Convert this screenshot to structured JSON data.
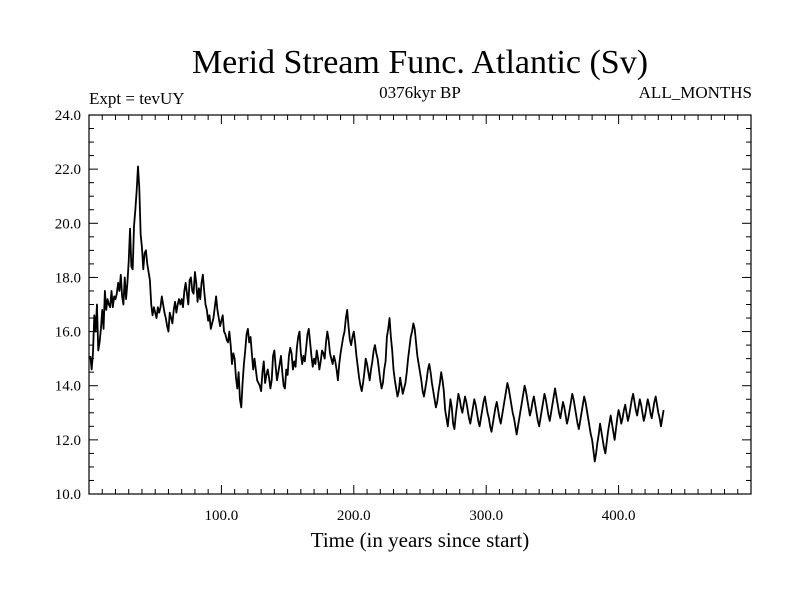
{
  "chart_data": {
    "type": "line",
    "title": "Merid Stream Func. Atlantic (Sv)",
    "left_label": "Expt = tevUY",
    "center_label": "0376kyr BP",
    "right_label": "ALL_MONTHS",
    "xlabel": "Time (in years since start)",
    "ylabel": "",
    "xlim": [
      0,
      500
    ],
    "ylim": [
      10,
      24
    ],
    "x_ticks": [
      100,
      200,
      300,
      400
    ],
    "x_tick_labels": [
      "100.0",
      "200.0",
      "300.0",
      "400.0"
    ],
    "y_ticks": [
      10,
      12,
      14,
      16,
      18,
      20,
      22,
      24
    ],
    "y_tick_labels": [
      "10.0",
      "12.0",
      "14.0",
      "16.0",
      "18.0",
      "20.0",
      "22.0",
      "24.0"
    ],
    "series": [
      {
        "color": "#000000",
        "x_start": 1,
        "x_step": 1,
        "values": [
          15.1,
          14.6,
          15.2,
          16.6,
          16.0,
          17.0,
          15.3,
          15.6,
          16.1,
          16.8,
          16.1,
          17.5,
          16.8,
          17.2,
          17.0,
          16.9,
          17.5,
          16.9,
          17.3,
          17.2,
          17.4,
          17.8,
          17.5,
          18.1,
          17.3,
          17.0,
          18.0,
          17.2,
          17.8,
          18.6,
          19.8,
          18.4,
          18.3,
          19.9,
          20.5,
          21.2,
          22.1,
          21.3,
          19.6,
          19.1,
          18.3,
          18.9,
          19.0,
          18.5,
          18.2,
          17.9,
          17.0,
          16.6,
          16.9,
          16.7,
          16.5,
          16.9,
          16.7,
          16.9,
          17.3,
          17.0,
          16.7,
          16.5,
          16.2,
          16.0,
          16.7,
          16.5,
          16.3,
          16.8,
          17.1,
          16.7,
          17.0,
          17.2,
          17.0,
          17.2,
          16.9,
          17.5,
          17.8,
          17.4,
          17.0,
          17.9,
          18.0,
          17.5,
          17.4,
          18.2,
          17.8,
          17.1,
          17.6,
          17.2,
          17.8,
          18.1,
          17.5,
          17.0,
          16.8,
          16.4,
          16.6,
          16.1,
          16.3,
          16.5,
          16.9,
          17.3,
          16.8,
          16.5,
          16.2,
          16.4,
          16.6,
          16.0,
          15.9,
          15.7,
          15.6,
          16.0,
          15.5,
          14.8,
          15.2,
          15.0,
          14.3,
          13.9,
          14.5,
          13.5,
          13.2,
          14.1,
          14.8,
          15.3,
          15.9,
          16.1,
          15.6,
          15.8,
          15.2,
          14.6,
          15.0,
          14.6,
          14.2,
          14.1,
          14.0,
          13.8,
          14.5,
          14.9,
          14.1,
          14.4,
          14.6,
          14.3,
          13.9,
          14.2,
          15.1,
          15.3,
          14.7,
          14.2,
          14.5,
          14.8,
          15.1,
          14.5,
          14.0,
          13.9,
          14.6,
          14.4,
          15.1,
          15.4,
          15.2,
          14.6,
          14.9,
          14.7,
          15.4,
          15.8,
          16.0,
          15.2,
          14.8,
          15.1,
          14.9,
          15.4,
          15.9,
          16.1,
          15.6,
          15.1,
          14.7,
          15.0,
          14.8,
          15.3,
          15.0,
          14.6,
          14.9,
          15.3,
          15.2,
          15.0,
          15.6,
          16.0,
          15.7,
          15.2,
          15.0,
          14.8,
          15.1,
          14.9,
          14.6,
          14.2,
          14.8,
          15.2,
          15.5,
          15.8,
          16.0,
          16.5,
          16.8,
          16.2,
          15.7,
          15.5,
          15.8,
          16.0,
          15.6,
          15.1,
          14.7,
          14.3,
          14.0,
          13.8,
          14.1,
          14.5,
          15.0,
          14.8,
          14.5,
          14.2,
          14.6,
          14.9,
          15.3,
          15.5,
          15.2,
          15.0,
          14.6,
          14.2,
          13.9,
          14.1,
          14.6,
          14.9,
          15.8,
          16.1,
          16.5,
          15.8,
          15.3,
          14.6,
          14.2,
          13.9,
          13.6,
          13.8,
          14.3,
          14.0,
          13.7,
          13.9,
          14.1,
          14.5,
          15.0,
          15.4,
          15.8,
          16.0,
          16.3,
          16.1,
          15.6,
          15.1,
          14.8,
          14.5,
          14.2,
          13.8,
          13.6,
          13.9,
          14.2,
          14.6,
          14.8,
          14.5,
          14.1,
          13.8,
          13.5,
          13.2,
          13.4,
          13.8,
          14.1,
          14.5,
          14.2,
          13.8,
          13.1,
          12.8,
          12.5,
          13.0,
          13.5,
          13.2,
          12.6,
          12.4,
          12.9,
          13.3,
          13.7,
          13.5,
          13.2,
          13.0,
          13.3,
          13.6,
          13.4,
          13.1,
          12.8,
          12.6,
          12.9,
          13.2,
          13.5,
          13.3,
          13.0,
          12.7,
          12.5,
          12.8,
          13.1,
          13.4,
          13.6,
          13.3,
          13.0,
          12.8,
          12.5,
          12.3,
          12.6,
          12.9,
          13.2,
          13.4,
          13.1,
          12.8,
          12.6,
          12.9,
          13.2,
          13.5,
          13.8,
          14.1,
          13.9,
          13.6,
          13.3,
          13.0,
          12.8,
          12.5,
          12.2,
          12.5,
          12.8,
          13.1,
          13.4,
          13.7,
          14.0,
          13.8,
          13.5,
          13.2,
          12.9,
          13.1,
          13.4,
          13.6,
          13.3,
          13.0,
          12.7,
          12.5,
          12.8,
          13.1,
          13.4,
          13.7,
          13.5,
          13.2,
          12.9,
          12.7,
          13.0,
          13.3,
          13.6,
          13.9,
          13.6,
          13.3,
          13.0,
          12.8,
          13.1,
          13.4,
          13.2,
          12.9,
          12.6,
          12.8,
          13.1,
          13.4,
          13.7,
          13.5,
          13.2,
          12.9,
          12.6,
          12.4,
          12.7,
          13.0,
          13.3,
          13.6,
          13.4,
          13.1,
          12.8,
          12.5,
          12.2,
          12.0,
          11.6,
          11.2,
          11.5,
          11.9,
          12.2,
          12.6,
          12.3,
          12.0,
          11.7,
          11.5,
          11.9,
          12.3,
          12.6,
          12.9,
          12.6,
          12.3,
          12.0,
          12.4,
          12.8,
          13.1,
          12.9,
          12.6,
          12.8,
          13.1,
          13.3,
          13.0,
          12.7,
          12.9,
          13.2,
          13.5,
          13.7,
          13.4,
          13.1,
          12.9,
          13.2,
          13.5,
          13.3,
          13.0,
          12.7,
          12.9,
          13.2,
          13.5,
          13.3,
          13.0,
          12.8,
          13.1,
          13.4,
          13.6,
          13.3,
          13.0,
          12.8,
          12.5,
          12.8,
          13.1
        ]
      }
    ]
  }
}
